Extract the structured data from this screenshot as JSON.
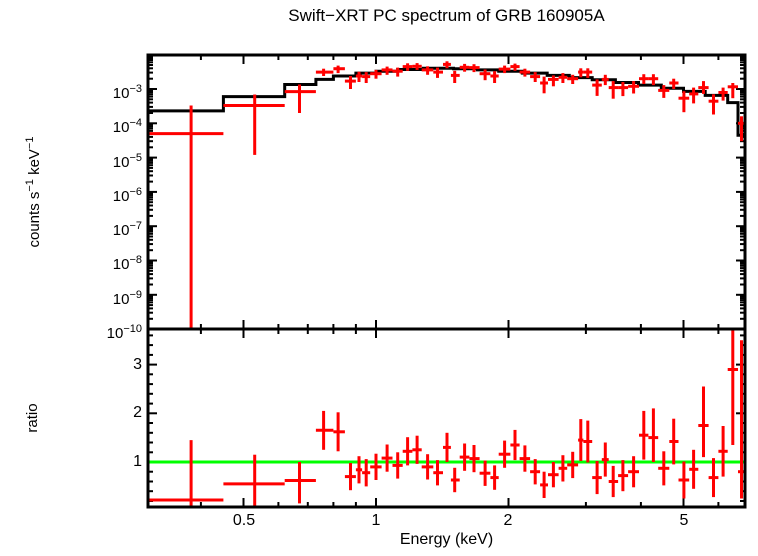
{
  "title": "Swift−XRT PC spectrum of GRB 160905A",
  "colors": {
    "background": "#ffffff",
    "axis": "#000000",
    "data": "#ff0000",
    "model": "#000000",
    "reference": "#00ff00"
  },
  "axes": {
    "x_label": "Energy (keV)",
    "x_tick_labels": [
      "0.5",
      "1",
      "2",
      "5"
    ],
    "top_y_label_parts": {
      "p0": "counts s",
      "p1": "−1",
      "p2": " keV",
      "p3": "−1"
    },
    "top_y_tick_labels": [
      {
        "m": "10",
        "e": "−3"
      },
      {
        "m": "10",
        "e": "−4"
      },
      {
        "m": "10",
        "e": "−5"
      },
      {
        "m": "10",
        "e": "−6"
      },
      {
        "m": "10",
        "e": "−7"
      },
      {
        "m": "10",
        "e": "−8"
      },
      {
        "m": "10",
        "e": "−9"
      },
      {
        "m": "10",
        "e": "−10"
      }
    ],
    "bottom_y_label": "ratio",
    "bottom_y_tick_labels": [
      "1",
      "2",
      "3"
    ]
  },
  "chart_data": [
    {
      "type": "scatter",
      "name": "spectrum",
      "title": "Swift−XRT PC spectrum of GRB 160905A",
      "xlabel": "Energy (keV)",
      "ylabel": "counts s^-1 keV^-1",
      "xscale": "log",
      "yscale": "log",
      "xlim": [
        0.304,
        6.9
      ],
      "ylim": [
        1e-10,
        0.01
      ],
      "xticks": [
        0.5,
        1,
        2,
        5
      ],
      "yticks": [
        1e-10,
        1e-09,
        1e-08,
        1e-07,
        1e-06,
        1e-05,
        0.0001,
        0.001
      ],
      "grid": false,
      "legend": null,
      "marker": "errorbar-cross",
      "color": "#ff0000",
      "model": {
        "color": "#000000",
        "style": "stepped",
        "steps_columns": [
          "energy_lo_keV",
          "energy_hi_keV",
          "model_counts"
        ],
        "steps": [
          [
            0.304,
            0.45,
            0.00023
          ],
          [
            0.45,
            0.62,
            0.0006
          ],
          [
            0.62,
            0.73,
            0.00135
          ],
          [
            0.73,
            0.8,
            0.0019
          ],
          [
            0.8,
            0.9,
            0.0024
          ],
          [
            0.9,
            1.0,
            0.0029
          ],
          [
            1.0,
            1.12,
            0.0033
          ],
          [
            1.12,
            1.28,
            0.0037
          ],
          [
            1.28,
            1.5,
            0.004
          ],
          [
            1.5,
            1.7,
            0.0039
          ],
          [
            1.7,
            1.9,
            0.0036
          ],
          [
            1.9,
            2.15,
            0.0033
          ],
          [
            2.15,
            2.45,
            0.0029
          ],
          [
            2.45,
            2.75,
            0.0025
          ],
          [
            2.75,
            3.1,
            0.00215
          ],
          [
            3.1,
            3.5,
            0.00185
          ],
          [
            3.5,
            3.95,
            0.00155
          ],
          [
            3.95,
            4.45,
            0.0013
          ],
          [
            4.45,
            5.0,
            0.00105
          ],
          [
            5.0,
            5.6,
            0.00085
          ],
          [
            5.6,
            6.3,
            0.00065
          ],
          [
            6.3,
            6.65,
            0.0004
          ],
          [
            6.65,
            6.9,
            4.5e-05
          ]
        ]
      },
      "points_columns": [
        "energy_keV",
        "energy_lo_keV",
        "energy_hi_keV",
        "counts",
        "counts_lo",
        "counts_hi"
      ],
      "points": [
        [
          0.38,
          0.304,
          0.45,
          5e-05,
          1e-10,
          0.00033
        ],
        [
          0.53,
          0.45,
          0.62,
          0.00033,
          1.2e-05,
          0.00069
        ],
        [
          0.67,
          0.62,
          0.73,
          0.00084,
          0.0002,
          0.00135
        ],
        [
          0.76,
          0.73,
          0.8,
          0.0031,
          0.0024,
          0.0039
        ],
        [
          0.82,
          0.8,
          0.85,
          0.0039,
          0.0029,
          0.0048
        ],
        [
          0.875,
          0.85,
          0.9,
          0.0017,
          0.001,
          0.0024
        ],
        [
          0.915,
          0.9,
          0.93,
          0.0024,
          0.0016,
          0.0032
        ],
        [
          0.95,
          0.93,
          0.97,
          0.0023,
          0.0015,
          0.0031
        ],
        [
          1.0,
          0.97,
          1.03,
          0.0028,
          0.002,
          0.0036
        ],
        [
          1.06,
          1.03,
          1.09,
          0.0036,
          0.0026,
          0.0045
        ],
        [
          1.12,
          1.09,
          1.15,
          0.0033,
          0.0023,
          0.0042
        ],
        [
          1.18,
          1.15,
          1.21,
          0.0045,
          0.0034,
          0.0056
        ],
        [
          1.24,
          1.21,
          1.27,
          0.0046,
          0.0036,
          0.0057
        ],
        [
          1.31,
          1.27,
          1.35,
          0.0036,
          0.0026,
          0.0046
        ],
        [
          1.38,
          1.35,
          1.42,
          0.0031,
          0.0021,
          0.0042
        ],
        [
          1.45,
          1.42,
          1.48,
          0.0052,
          0.004,
          0.0064
        ],
        [
          1.51,
          1.48,
          1.55,
          0.0025,
          0.0015,
          0.0034
        ],
        [
          1.59,
          1.55,
          1.63,
          0.0043,
          0.0032,
          0.0054
        ],
        [
          1.67,
          1.63,
          1.72,
          0.0042,
          0.0031,
          0.0053
        ],
        [
          1.77,
          1.72,
          1.82,
          0.0028,
          0.0018,
          0.0037
        ],
        [
          1.86,
          1.82,
          1.9,
          0.0024,
          0.0015,
          0.0033
        ],
        [
          1.96,
          1.9,
          2.02,
          0.0038,
          0.0029,
          0.0048
        ],
        [
          2.07,
          2.02,
          2.12,
          0.0045,
          0.0034,
          0.0055
        ],
        [
          2.18,
          2.12,
          2.24,
          0.0031,
          0.0023,
          0.0039
        ],
        [
          2.3,
          2.24,
          2.36,
          0.0023,
          0.0016,
          0.0031
        ],
        [
          2.41,
          2.36,
          2.46,
          0.0015,
          0.00075,
          0.0023
        ],
        [
          2.53,
          2.46,
          2.6,
          0.0019,
          0.0012,
          0.0025
        ],
        [
          2.66,
          2.6,
          2.72,
          0.0022,
          0.0015,
          0.0029
        ],
        [
          2.8,
          2.72,
          2.88,
          0.002,
          0.0014,
          0.0026
        ],
        [
          2.92,
          2.88,
          2.96,
          0.0031,
          0.0022,
          0.004
        ],
        [
          3.03,
          2.96,
          3.1,
          0.0031,
          0.0021,
          0.004
        ],
        [
          3.18,
          3.1,
          3.26,
          0.0013,
          0.00063,
          0.0019
        ],
        [
          3.32,
          3.26,
          3.38,
          0.0019,
          0.0013,
          0.0026
        ],
        [
          3.46,
          3.38,
          3.55,
          0.0011,
          0.00052,
          0.0017
        ],
        [
          3.64,
          3.55,
          3.74,
          0.0011,
          0.00062,
          0.0016
        ],
        [
          3.85,
          3.74,
          3.96,
          0.0012,
          0.00074,
          0.0017
        ],
        [
          4.06,
          3.96,
          4.16,
          0.002,
          0.0014,
          0.0027
        ],
        [
          4.27,
          4.16,
          4.38,
          0.002,
          0.0013,
          0.0027
        ],
        [
          4.51,
          4.38,
          4.64,
          0.00091,
          0.00055,
          0.0013
        ],
        [
          4.75,
          4.64,
          4.87,
          0.0015,
          0.001,
          0.002
        ],
        [
          5.01,
          4.87,
          5.15,
          0.00054,
          0.00021,
          0.00086
        ],
        [
          5.27,
          5.15,
          5.4,
          0.00072,
          0.00038,
          0.0011
        ],
        [
          5.55,
          5.4,
          5.7,
          0.0011,
          0.00072,
          0.0017
        ],
        [
          5.85,
          5.7,
          6.0,
          0.00044,
          0.00018,
          0.0007
        ],
        [
          6.15,
          6.0,
          6.3,
          0.00079,
          0.00046,
          0.0011
        ],
        [
          6.47,
          6.3,
          6.65,
          0.00116,
          0.00054,
          0.0015
        ],
        [
          6.77,
          6.65,
          6.9,
          0.0001,
          3e-05,
          0.00016
        ]
      ]
    },
    {
      "type": "scatter",
      "name": "ratio",
      "xlabel": "Energy (keV)",
      "ylabel": "ratio",
      "xscale": "log",
      "yscale": "linear",
      "xlim": [
        0.304,
        6.9
      ],
      "ylim": [
        0.08,
        3.73
      ],
      "xticks": [
        0.5,
        1,
        2,
        5
      ],
      "yticks": [
        1,
        2,
        3
      ],
      "grid": false,
      "legend": null,
      "reference_line_y": 1.0,
      "reference_color": "#00ff00",
      "color": "#ff0000",
      "points_columns": [
        "energy_keV",
        "energy_lo_keV",
        "energy_hi_keV",
        "ratio",
        "ratio_lo",
        "ratio_hi"
      ],
      "points": [
        [
          0.38,
          0.304,
          0.45,
          0.22,
          0.0,
          1.45
        ],
        [
          0.53,
          0.45,
          0.62,
          0.55,
          0.02,
          1.15
        ],
        [
          0.67,
          0.62,
          0.73,
          0.62,
          0.15,
          1.0
        ],
        [
          0.76,
          0.73,
          0.8,
          1.65,
          1.25,
          2.05
        ],
        [
          0.82,
          0.8,
          0.85,
          1.62,
          1.22,
          2.02
        ],
        [
          0.875,
          0.85,
          0.9,
          0.7,
          0.42,
          0.98
        ],
        [
          0.915,
          0.9,
          0.93,
          0.84,
          0.56,
          1.12
        ],
        [
          0.95,
          0.93,
          0.97,
          0.78,
          0.5,
          1.06
        ],
        [
          1.0,
          0.97,
          1.03,
          0.9,
          0.63,
          1.17
        ],
        [
          1.06,
          1.03,
          1.09,
          1.08,
          0.8,
          1.36
        ],
        [
          1.12,
          1.09,
          1.15,
          0.93,
          0.66,
          1.2
        ],
        [
          1.18,
          1.15,
          1.21,
          1.22,
          0.93,
          1.51
        ],
        [
          1.24,
          1.21,
          1.27,
          1.25,
          0.96,
          1.54
        ],
        [
          1.31,
          1.27,
          1.35,
          0.9,
          0.64,
          1.16
        ],
        [
          1.38,
          1.35,
          1.42,
          0.78,
          0.52,
          1.04
        ],
        [
          1.45,
          1.42,
          1.48,
          1.3,
          1.0,
          1.6
        ],
        [
          1.51,
          1.48,
          1.55,
          0.63,
          0.38,
          0.88
        ],
        [
          1.59,
          1.55,
          1.63,
          1.1,
          0.82,
          1.38
        ],
        [
          1.67,
          1.63,
          1.72,
          1.07,
          0.79,
          1.35
        ],
        [
          1.77,
          1.72,
          1.82,
          0.77,
          0.51,
          1.03
        ],
        [
          1.86,
          1.82,
          1.9,
          0.68,
          0.43,
          0.93
        ],
        [
          1.96,
          1.9,
          2.02,
          1.16,
          0.88,
          1.44
        ],
        [
          2.07,
          2.02,
          2.12,
          1.35,
          1.04,
          1.66
        ],
        [
          2.18,
          2.12,
          2.24,
          1.07,
          0.8,
          1.34
        ],
        [
          2.3,
          2.24,
          2.36,
          0.8,
          0.54,
          1.06
        ],
        [
          2.41,
          2.36,
          2.46,
          0.53,
          0.26,
          0.8
        ],
        [
          2.53,
          2.46,
          2.6,
          0.74,
          0.48,
          1.0
        ],
        [
          2.66,
          2.6,
          2.72,
          0.87,
          0.6,
          1.14
        ],
        [
          2.8,
          2.72,
          2.88,
          0.94,
          0.67,
          1.21
        ],
        [
          2.92,
          2.88,
          2.96,
          1.45,
          1.02,
          1.88
        ],
        [
          3.03,
          2.96,
          3.1,
          1.42,
          0.99,
          1.85
        ],
        [
          3.18,
          3.1,
          3.26,
          0.68,
          0.34,
          1.02
        ],
        [
          3.32,
          3.26,
          3.38,
          1.05,
          0.7,
          1.4
        ],
        [
          3.46,
          3.38,
          3.55,
          0.6,
          0.28,
          0.92
        ],
        [
          3.64,
          3.55,
          3.74,
          0.72,
          0.4,
          1.04
        ],
        [
          3.85,
          3.74,
          3.96,
          0.8,
          0.48,
          1.12
        ],
        [
          4.06,
          3.96,
          4.16,
          1.55,
          1.05,
          2.05
        ],
        [
          4.27,
          4.16,
          4.38,
          1.5,
          1.0,
          2.1
        ],
        [
          4.51,
          4.38,
          4.64,
          0.87,
          0.52,
          1.22
        ],
        [
          4.75,
          4.64,
          4.87,
          1.42,
          0.95,
          1.89
        ],
        [
          5.01,
          4.87,
          5.15,
          0.63,
          0.25,
          1.01
        ],
        [
          5.27,
          5.15,
          5.4,
          0.85,
          0.45,
          1.25
        ],
        [
          5.55,
          5.4,
          5.7,
          1.75,
          1.1,
          2.55
        ],
        [
          5.85,
          5.7,
          6.0,
          0.68,
          0.28,
          1.08
        ],
        [
          6.15,
          6.0,
          6.3,
          1.22,
          0.7,
          1.74
        ],
        [
          6.47,
          6.3,
          6.65,
          2.9,
          1.35,
          3.7
        ],
        [
          6.77,
          6.65,
          6.9,
          0.8,
          0.25,
          3.5
        ]
      ]
    }
  ]
}
